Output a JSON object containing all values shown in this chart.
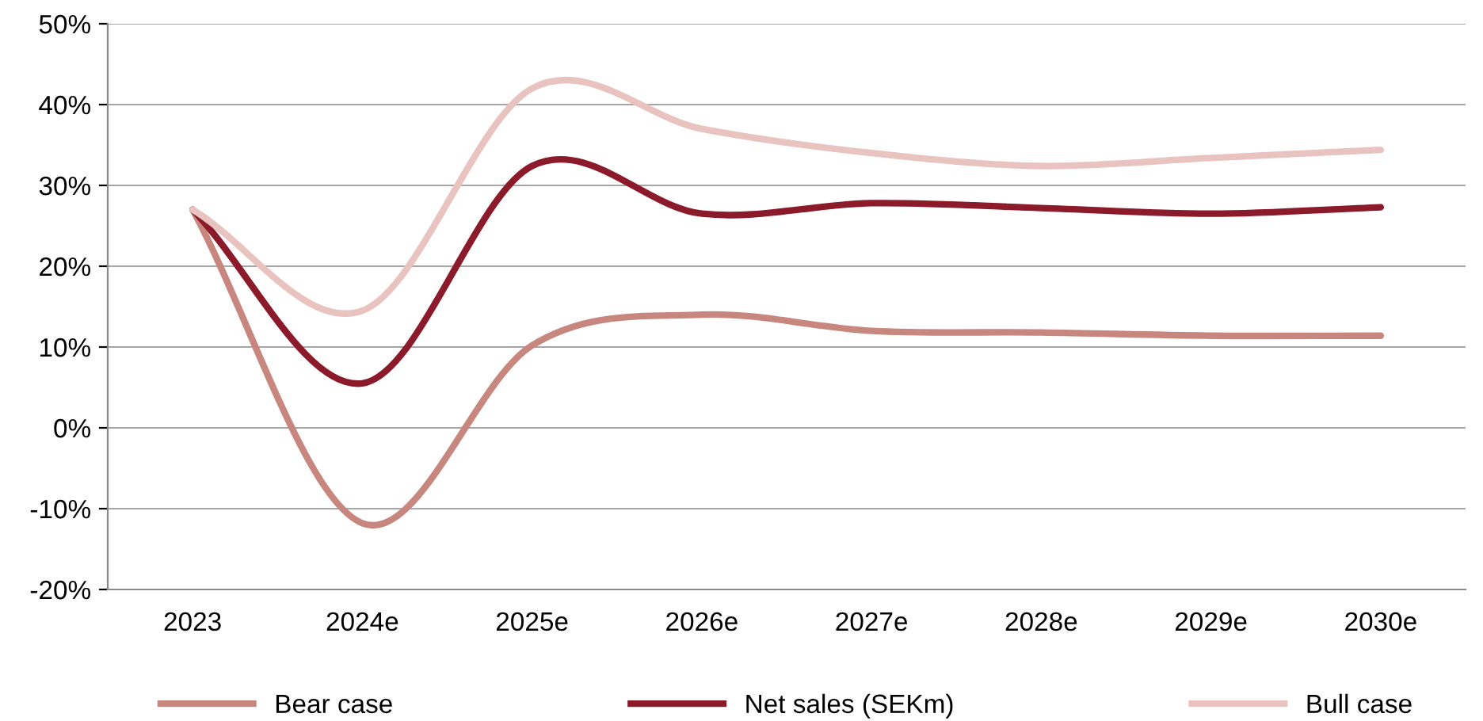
{
  "chart_data": {
    "type": "line",
    "categories": [
      "2023",
      "2024e",
      "2025e",
      "2026e",
      "2027e",
      "2028e",
      "2029e",
      "2030e"
    ],
    "series": [
      {
        "name": "Bear case",
        "color": "#c8877e",
        "values": [
          27,
          -11.8,
          10.2,
          14,
          12,
          11.8,
          11.4,
          11.4
        ]
      },
      {
        "name": "Net sales (SEKm)",
        "color": "#8b1a2b",
        "values": [
          27,
          5.5,
          32.4,
          26.5,
          27.8,
          27.2,
          26.5,
          27.3
        ]
      },
      {
        "name": "Bull case",
        "color": "#e8c3bf",
        "values": [
          27,
          14.5,
          42,
          37,
          34,
          32.4,
          33.4,
          34.4
        ]
      }
    ],
    "ylim": [
      -20,
      50
    ],
    "yticks": [
      {
        "value": -20,
        "label": "-20%"
      },
      {
        "value": -10,
        "label": "-10%"
      },
      {
        "value": 0,
        "label": "0%"
      },
      {
        "value": 10,
        "label": "10%"
      },
      {
        "value": 20,
        "label": "20%"
      },
      {
        "value": 30,
        "label": "30%"
      },
      {
        "value": 40,
        "label": "40%"
      },
      {
        "value": 50,
        "label": "50%"
      }
    ],
    "grid": "y",
    "legend": "bottom",
    "marker": "none",
    "line_style": "solid"
  }
}
